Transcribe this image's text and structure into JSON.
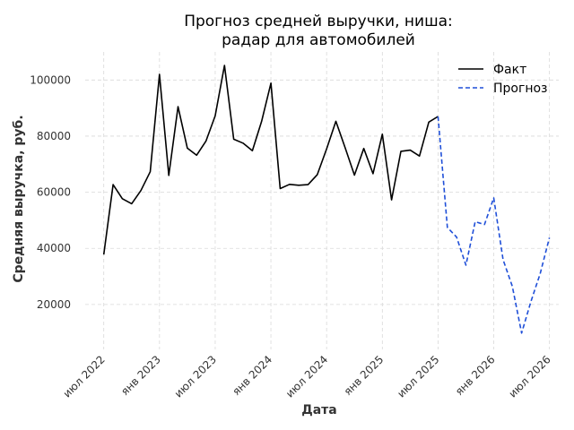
{
  "chart_data": {
    "type": "line",
    "title_line1": "Прогноз средней выручки, ниша:",
    "title_line2": "радар для автомобилей",
    "xlabel": "Дата",
    "ylabel": "Средняя выручка, руб.",
    "x_ticks": [
      "июл 2022",
      "янв 2023",
      "июл 2023",
      "янв 2024",
      "июл 2024",
      "янв 2025",
      "июл 2025",
      "янв 2026",
      "июл 2026"
    ],
    "y_ticks": [
      "20000",
      "40000",
      "60000",
      "80000",
      "100000"
    ],
    "ylim": [
      4000,
      110000
    ],
    "xlim": [
      "2022-05",
      "2026-08"
    ],
    "grid": true,
    "legend_position": "top-right",
    "series": [
      {
        "name": "Факт",
        "color": "#000000",
        "style": "solid",
        "x": [
          "2022-07",
          "2022-08",
          "2022-09",
          "2022-10",
          "2022-11",
          "2022-12",
          "2023-01",
          "2023-02",
          "2023-03",
          "2023-04",
          "2023-05",
          "2023-06",
          "2023-07",
          "2023-08",
          "2023-09",
          "2023-10",
          "2023-11",
          "2023-12",
          "2024-01",
          "2024-02",
          "2024-03",
          "2024-04",
          "2024-05",
          "2024-06",
          "2024-07",
          "2024-08",
          "2024-09",
          "2024-10",
          "2024-11",
          "2024-12",
          "2025-01",
          "2025-02",
          "2025-03",
          "2025-04",
          "2025-05",
          "2025-06",
          "2025-07"
        ],
        "values": [
          37800,
          62700,
          57700,
          55900,
          60600,
          67300,
          102000,
          66000,
          90500,
          75700,
          73200,
          78200,
          87200,
          105200,
          78900,
          77500,
          74800,
          85300,
          98900,
          61300,
          62800,
          62500,
          62700,
          66300,
          75500,
          85300,
          75800,
          66100,
          75600,
          66600,
          80700,
          57300,
          74600,
          75000,
          72900,
          85000,
          87000
        ]
      },
      {
        "name": "Прогноз",
        "color": "#1f4fd8",
        "style": "dashed",
        "x": [
          "2025-07",
          "2025-08",
          "2025-09",
          "2025-10",
          "2025-11",
          "2025-12",
          "2026-01",
          "2026-02",
          "2026-03",
          "2026-04",
          "2026-05",
          "2026-06",
          "2026-07"
        ],
        "values": [
          87000,
          47500,
          44000,
          34000,
          49500,
          48500,
          58000,
          36000,
          26500,
          9800,
          21000,
          31000,
          43800
        ]
      }
    ]
  }
}
